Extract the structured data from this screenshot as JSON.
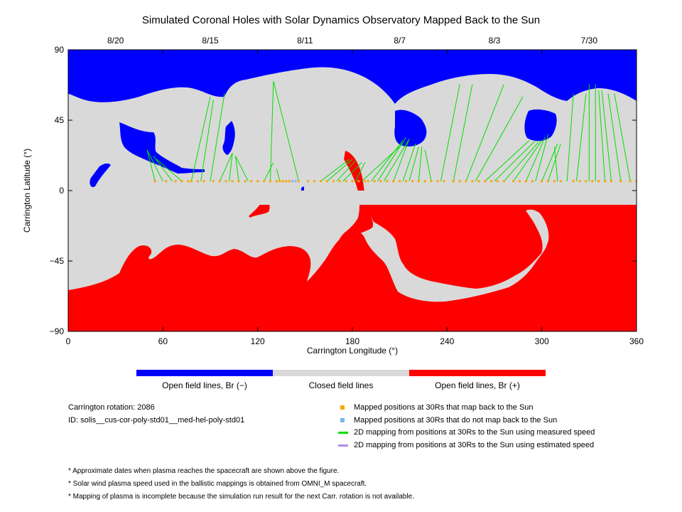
{
  "chart_data": {
    "type": "map",
    "title": "Simulated Coronal Holes with Solar Dynamics Observatory Mapped Back to the Sun",
    "xlabel": "Carrington Longitude (°)",
    "ylabel": "Carrington Latitude (°)",
    "xlim": [
      0,
      360
    ],
    "ylim": [
      -90,
      90
    ],
    "xticks": [
      0,
      60,
      120,
      180,
      240,
      300,
      360
    ],
    "yticks": [
      90,
      45,
      0,
      -45,
      -90
    ],
    "top_dates": [
      {
        "label": "8/20",
        "lon": 30
      },
      {
        "label": "8/15",
        "lon": 90
      },
      {
        "label": "8/11",
        "lon": 150
      },
      {
        "label": "8/7",
        "lon": 210
      },
      {
        "label": "8/3",
        "lon": 270
      },
      {
        "label": "7/30",
        "lon": 330
      }
    ],
    "regions": {
      "open_negative_color": "#0000ff",
      "closed_color": "#d9d9d9",
      "open_positive_color": "#ff0000"
    },
    "mapped_points_30Rs_lat": 6,
    "mapped_points_30Rs_lon": [
      55,
      62,
      68,
      72,
      76,
      78,
      82,
      86,
      92,
      96,
      100,
      104,
      108,
      112,
      116,
      120,
      124,
      128,
      132,
      134,
      136,
      138,
      140,
      146,
      152,
      156,
      160,
      164,
      168,
      172,
      176,
      180,
      184,
      188,
      190,
      194,
      198,
      202,
      206,
      210,
      214,
      218,
      222,
      226,
      230,
      234,
      238,
      244,
      248,
      252,
      256,
      260,
      264,
      268,
      272,
      276,
      282,
      286,
      290,
      294,
      300,
      304,
      308,
      312,
      320,
      324,
      328,
      332,
      336,
      340,
      344,
      350,
      356,
      360
    ],
    "unmapped_points_30Rs_lon": [
      142,
      144
    ],
    "field_lines_measured": [
      [
        55,
        6,
        50,
        26
      ],
      [
        60,
        6,
        50,
        26
      ],
      [
        66,
        6,
        54,
        22
      ],
      [
        72,
        6,
        56,
        20
      ],
      [
        78,
        6,
        90,
        60
      ],
      [
        84,
        6,
        92,
        58
      ],
      [
        90,
        6,
        99,
        62
      ],
      [
        96,
        6,
        104,
        24
      ],
      [
        102,
        6,
        104,
        24
      ],
      [
        108,
        6,
        106,
        22
      ],
      [
        114,
        6,
        106,
        22
      ],
      [
        124,
        6,
        130,
        18
      ],
      [
        128,
        6,
        130,
        70
      ],
      [
        134,
        6,
        132,
        14
      ],
      [
        146,
        6,
        130,
        70
      ],
      [
        160,
        6,
        178,
        20
      ],
      [
        164,
        6,
        180,
        20
      ],
      [
        170,
        6,
        182,
        19
      ],
      [
        174,
        6,
        186,
        18
      ],
      [
        182,
        6,
        188,
        18
      ],
      [
        186,
        6,
        212,
        30
      ],
      [
        192,
        6,
        212,
        32
      ],
      [
        196,
        6,
        214,
        34
      ],
      [
        200,
        6,
        216,
        33
      ],
      [
        206,
        6,
        216,
        33
      ],
      [
        212,
        6,
        220,
        30
      ],
      [
        216,
        6,
        222,
        28
      ],
      [
        222,
        6,
        224,
        28
      ],
      [
        230,
        6,
        226,
        26
      ],
      [
        236,
        6,
        248,
        68
      ],
      [
        244,
        6,
        256,
        68
      ],
      [
        252,
        6,
        276,
        68
      ],
      [
        258,
        6,
        288,
        60
      ],
      [
        264,
        6,
        292,
        32
      ],
      [
        270,
        6,
        296,
        32
      ],
      [
        276,
        6,
        298,
        31
      ],
      [
        282,
        6,
        300,
        32
      ],
      [
        290,
        6,
        302,
        34
      ],
      [
        296,
        6,
        304,
        36
      ],
      [
        300,
        6,
        310,
        30
      ],
      [
        304,
        6,
        312,
        30
      ],
      [
        310,
        6,
        308,
        28
      ],
      [
        316,
        6,
        320,
        62
      ],
      [
        322,
        6,
        328,
        62
      ],
      [
        330,
        6,
        330,
        68
      ],
      [
        334,
        6,
        334,
        68
      ],
      [
        340,
        6,
        336,
        64
      ],
      [
        344,
        6,
        338,
        64
      ],
      [
        350,
        6,
        342,
        62
      ],
      [
        356,
        6,
        346,
        62
      ]
    ],
    "field_lines_estimated": []
  },
  "colorbar": [
    {
      "label": "Open field lines, Br (−)",
      "color": "#0000ff"
    },
    {
      "label": "Closed field lines",
      "color": "#d9d9d9"
    },
    {
      "label": "Open field lines, Br (+)",
      "color": "#ff0000"
    }
  ],
  "info": {
    "rotation": "Carrington rotation: 2086",
    "id": "ID: solis__cus-cor-poly-std01__med-hel-poly-std01"
  },
  "legend": [
    {
      "label": "Mapped positions at 30Rs that map back to the Sun",
      "marker": "square",
      "color": "#f5a800"
    },
    {
      "label": "Mapped positions at 30Rs that do not map back to the Sun",
      "marker": "square",
      "color": "#7fb3f0"
    },
    {
      "label": "2D mapping from positions at 30Rs to the Sun using measured speed",
      "marker": "line",
      "color": "#00e000"
    },
    {
      "label": "2D mapping from positions at 30Rs to the Sun using estimated speed",
      "marker": "line",
      "color": "#b388f0"
    }
  ],
  "notes": [
    "* Approximate dates when plasma reaches the spacecraft are shown above the figure.",
    "* Solar wind plasma speed used in the ballistic mappings is obtained from OMNI_M spacecraft.",
    "* Mapping of plasma is incomplete because the simulation run result for the next Carr. rotation is not available."
  ]
}
